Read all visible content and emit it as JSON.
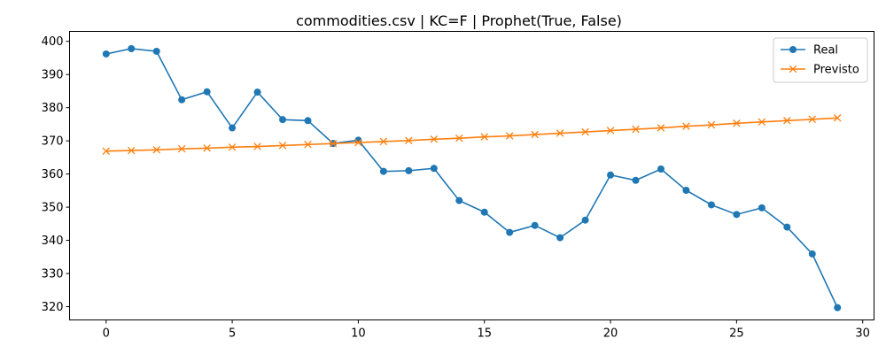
{
  "chart_data": {
    "type": "line",
    "title": "commodities.csv | KC=F | Prophet(True, False)",
    "xlabel": "",
    "ylabel": "",
    "xlim": [
      -1.45,
      30.45
    ],
    "ylim": [
      316,
      403
    ],
    "xticks": [
      0,
      5,
      10,
      15,
      20,
      25,
      30
    ],
    "yticks": [
      320,
      330,
      340,
      350,
      360,
      370,
      380,
      390,
      400
    ],
    "grid": false,
    "legend_position": "top-right",
    "x": [
      0,
      1,
      2,
      3,
      4,
      5,
      6,
      7,
      8,
      9,
      10,
      11,
      12,
      13,
      14,
      15,
      16,
      17,
      18,
      19,
      20,
      21,
      22,
      23,
      24,
      25,
      26,
      27,
      28,
      29
    ],
    "series": [
      {
        "name": "Real",
        "color": "#1f77b4",
        "marker": "circle",
        "values": [
          396.2,
          397.8,
          397.0,
          382.4,
          384.8,
          373.9,
          384.7,
          376.4,
          376.1,
          369.2,
          370.2,
          360.8,
          361.0,
          361.7,
          352.0,
          348.5,
          342.4,
          344.5,
          340.8,
          346.1,
          359.7,
          358.1,
          361.5,
          355.1,
          350.7,
          347.8,
          349.8,
          344.0,
          335.9,
          319.7
        ]
      },
      {
        "name": "Previsto",
        "color": "#ff7f0e",
        "marker": "x",
        "values": [
          366.9,
          367.1,
          367.3,
          367.6,
          367.8,
          368.1,
          368.3,
          368.6,
          368.9,
          369.2,
          369.5,
          369.8,
          370.1,
          370.5,
          370.8,
          371.2,
          371.5,
          371.9,
          372.3,
          372.7,
          373.1,
          373.5,
          373.9,
          374.4,
          374.8,
          375.3,
          375.7,
          376.1,
          376.5,
          376.9
        ]
      }
    ]
  }
}
